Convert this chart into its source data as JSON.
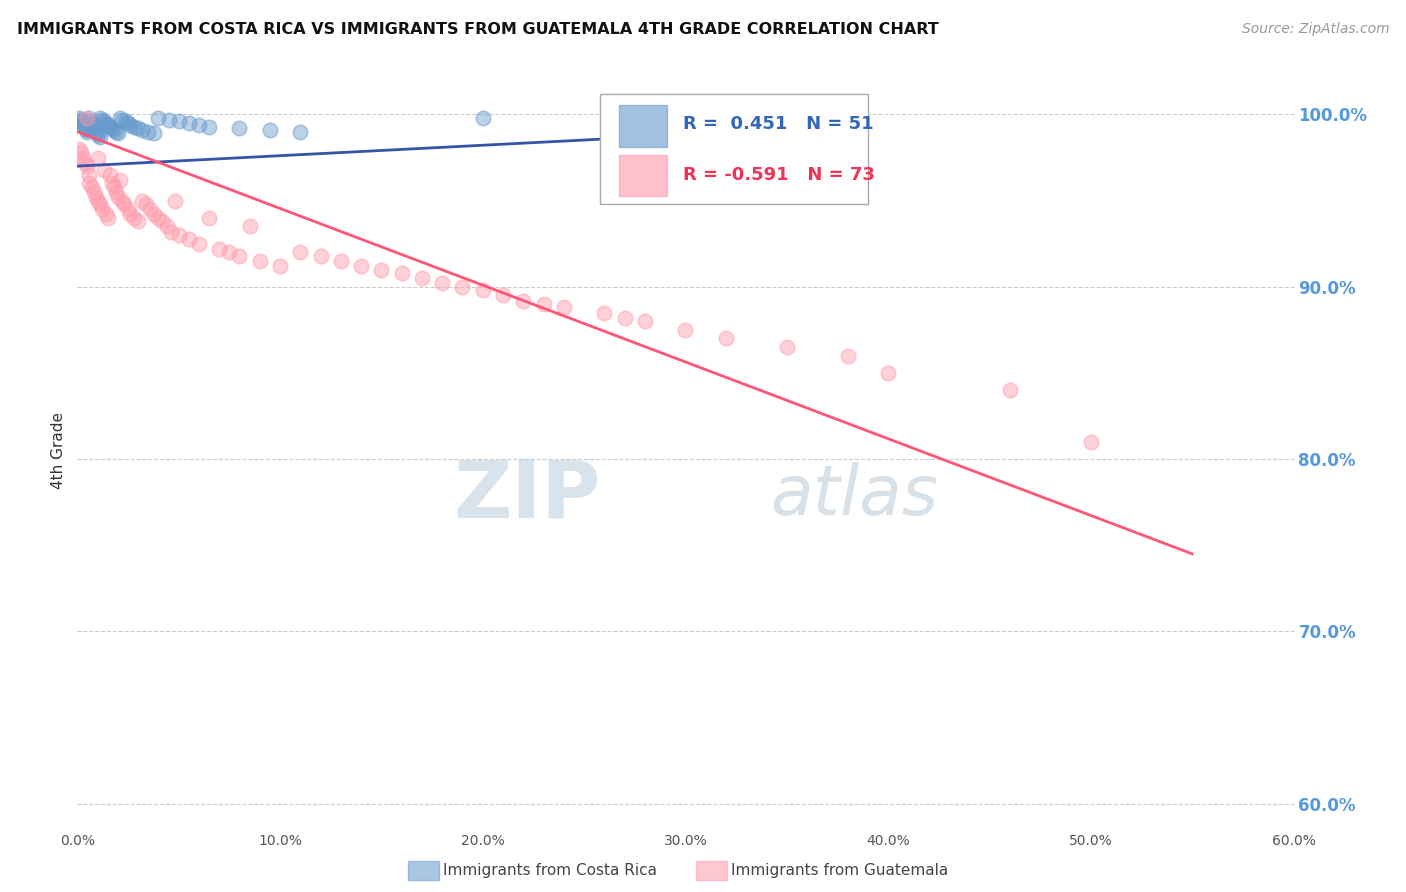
{
  "title": "IMMIGRANTS FROM COSTA RICA VS IMMIGRANTS FROM GUATEMALA 4TH GRADE CORRELATION CHART",
  "source": "Source: ZipAtlas.com",
  "ylabel": "4th Grade",
  "x_min": 0.0,
  "x_max": 0.6,
  "y_min": 0.585,
  "y_max": 1.025,
  "y_ticks": [
    0.6,
    0.7,
    0.8,
    0.9,
    1.0
  ],
  "y_tick_labels": [
    "60.0%",
    "70.0%",
    "80.0%",
    "90.0%",
    "100.0%"
  ],
  "x_ticks": [
    0.0,
    0.1,
    0.2,
    0.3,
    0.4,
    0.5,
    0.6
  ],
  "x_tick_labels": [
    "0.0%",
    "10.0%",
    "20.0%",
    "30.0%",
    "40.0%",
    "50.0%",
    "60.0%"
  ],
  "blue_R": 0.451,
  "blue_N": 51,
  "pink_R": -0.591,
  "pink_N": 73,
  "blue_color": "#6699CC",
  "pink_color": "#FF99AA",
  "blue_line_color": "#3355AA",
  "pink_line_color": "#FF5577",
  "legend_label_blue": "Immigrants from Costa Rica",
  "legend_label_pink": "Immigrants from Guatemala",
  "watermark": "ZIPAtlas",
  "blue_scatter_x": [
    0.001,
    0.002,
    0.002,
    0.003,
    0.003,
    0.004,
    0.004,
    0.005,
    0.005,
    0.006,
    0.006,
    0.007,
    0.007,
    0.008,
    0.008,
    0.009,
    0.009,
    0.01,
    0.01,
    0.011,
    0.011,
    0.012,
    0.013,
    0.014,
    0.015,
    0.016,
    0.017,
    0.018,
    0.019,
    0.02,
    0.021,
    0.022,
    0.024,
    0.025,
    0.026,
    0.028,
    0.03,
    0.032,
    0.035,
    0.038,
    0.04,
    0.045,
    0.05,
    0.055,
    0.06,
    0.065,
    0.08,
    0.095,
    0.11,
    0.2,
    0.29
  ],
  "blue_scatter_y": [
    0.998,
    0.997,
    0.996,
    0.995,
    0.994,
    0.993,
    0.992,
    0.991,
    0.99,
    0.998,
    0.996,
    0.995,
    0.994,
    0.993,
    0.992,
    0.991,
    0.99,
    0.989,
    0.988,
    0.987,
    0.998,
    0.997,
    0.996,
    0.995,
    0.994,
    0.993,
    0.992,
    0.991,
    0.99,
    0.989,
    0.998,
    0.997,
    0.996,
    0.995,
    0.994,
    0.993,
    0.992,
    0.991,
    0.99,
    0.989,
    0.998,
    0.997,
    0.996,
    0.995,
    0.994,
    0.993,
    0.992,
    0.991,
    0.99,
    0.998,
    0.967
  ],
  "pink_scatter_x": [
    0.001,
    0.002,
    0.003,
    0.004,
    0.005,
    0.005,
    0.006,
    0.006,
    0.007,
    0.008,
    0.009,
    0.01,
    0.01,
    0.011,
    0.012,
    0.013,
    0.014,
    0.015,
    0.016,
    0.017,
    0.018,
    0.019,
    0.02,
    0.021,
    0.022,
    0.023,
    0.025,
    0.026,
    0.028,
    0.03,
    0.032,
    0.034,
    0.036,
    0.038,
    0.04,
    0.042,
    0.044,
    0.046,
    0.048,
    0.05,
    0.055,
    0.06,
    0.065,
    0.07,
    0.075,
    0.08,
    0.085,
    0.09,
    0.1,
    0.11,
    0.12,
    0.13,
    0.14,
    0.15,
    0.16,
    0.17,
    0.18,
    0.19,
    0.2,
    0.21,
    0.22,
    0.23,
    0.24,
    0.26,
    0.27,
    0.28,
    0.3,
    0.32,
    0.35,
    0.38,
    0.4,
    0.46,
    0.5
  ],
  "pink_scatter_y": [
    0.98,
    0.978,
    0.975,
    0.972,
    0.97,
    0.998,
    0.965,
    0.96,
    0.958,
    0.955,
    0.952,
    0.95,
    0.975,
    0.948,
    0.945,
    0.968,
    0.942,
    0.94,
    0.965,
    0.96,
    0.958,
    0.955,
    0.952,
    0.962,
    0.95,
    0.948,
    0.945,
    0.942,
    0.94,
    0.938,
    0.95,
    0.948,
    0.945,
    0.942,
    0.94,
    0.938,
    0.935,
    0.932,
    0.95,
    0.93,
    0.928,
    0.925,
    0.94,
    0.922,
    0.92,
    0.918,
    0.935,
    0.915,
    0.912,
    0.92,
    0.918,
    0.915,
    0.912,
    0.91,
    0.908,
    0.905,
    0.902,
    0.9,
    0.898,
    0.895,
    0.892,
    0.89,
    0.888,
    0.885,
    0.882,
    0.88,
    0.875,
    0.87,
    0.865,
    0.86,
    0.85,
    0.84,
    0.81
  ],
  "blue_trend_x": [
    0.0,
    0.33
  ],
  "blue_trend_y": [
    0.97,
    0.99
  ],
  "pink_trend_x": [
    0.0,
    0.55
  ],
  "pink_trend_y": [
    0.99,
    0.745
  ]
}
